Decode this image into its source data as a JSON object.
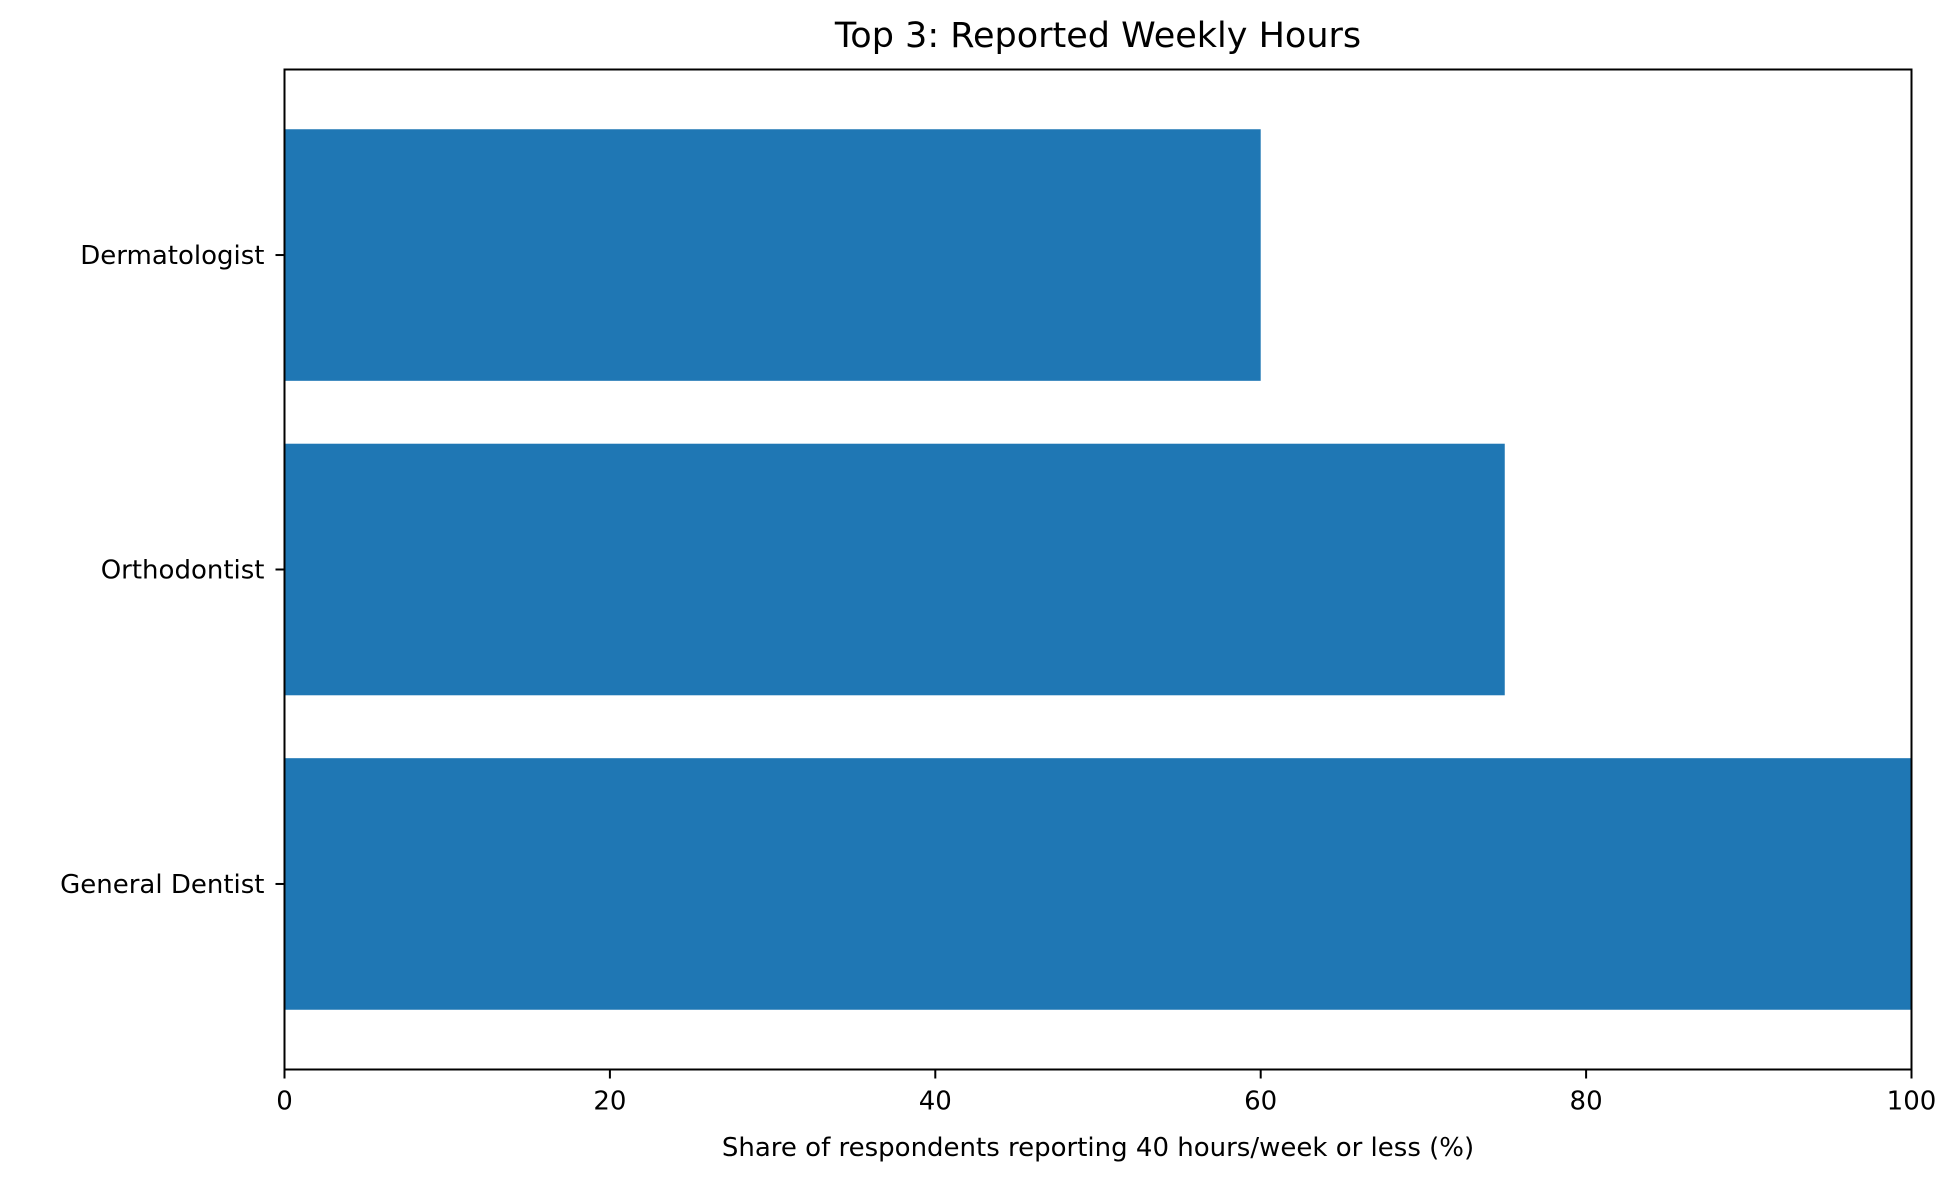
{
  "chart_data": {
    "type": "bar",
    "orientation": "horizontal",
    "title": "Top 3: Reported Weekly Hours",
    "xlabel": "Share of respondents reporting 40 hours/week or less (%)",
    "ylabel": "",
    "categories": [
      "Dermatologist",
      "Orthodontist",
      "General Dentist"
    ],
    "values": [
      60,
      75,
      100
    ],
    "xlim": [
      0,
      100
    ],
    "xticks": [
      0,
      20,
      40,
      60,
      80,
      100
    ],
    "grid": false,
    "legend": "none",
    "bar_color": "#1f77b4"
  }
}
